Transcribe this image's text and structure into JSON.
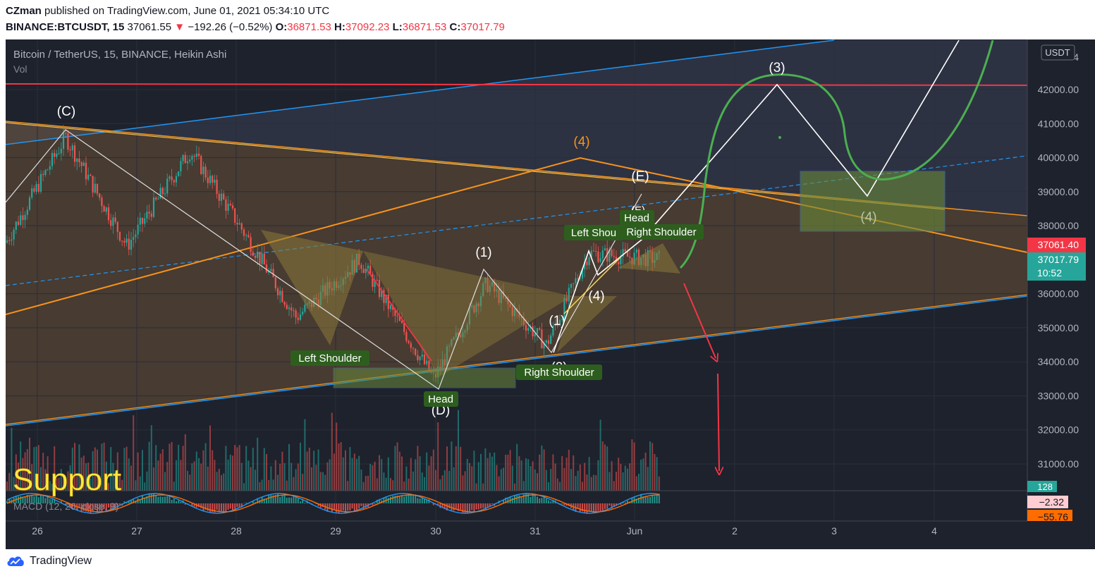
{
  "header": {
    "publisher": "CZman",
    "published_text": "published on TradingView.com, June 01, 2021 05:34:10 UTC",
    "symbol": "BINANCE:BTCUSDT, 15",
    "last": "37061.55",
    "change_arrow": "▼",
    "change": "−192.26 (−0.52%)",
    "open_label": "O:",
    "open": "36871.53",
    "high_label": "H:",
    "high": "37092.23",
    "low_label": "L:",
    "low": "36871.53",
    "close_label": "C:",
    "close": "37017.79"
  },
  "legend": {
    "title": "Bitcoin / TetherUS, 15, BINANCE, Heikin Ashi",
    "vol": "Vol",
    "macd": "MACD (12, 26, close, 9)"
  },
  "currency_badge": "USDT",
  "price_badges": {
    "red_price": "37061.40",
    "teal_price": "37017.79",
    "teal_time": "10:52",
    "vol_value": "128",
    "macd_val1": "−2.32",
    "macd_val2": "−55.76"
  },
  "annotations": {
    "support": "Support",
    "wave_C": "(C)",
    "wave_D": "(D)",
    "wave_E": "(E)",
    "wave_E_partial": "(E)",
    "wave_1a": "(1)",
    "wave_1b": "(1)",
    "wave_2": "(2)",
    "wave_3": "(3)",
    "wave_4_orange": "(4)",
    "wave_4_white": "(4)",
    "wave_4_box": "(4)",
    "left_shoulder_1": "Left Shoulder",
    "head_1": "Head",
    "right_shoulder_1": "Right Shoulder",
    "left_shoulder_2": "Left Shou",
    "head_2": "Head",
    "right_shoulder_2": "Right Shoulder"
  },
  "branding": {
    "name": "TradingView"
  },
  "colors": {
    "background": "#1e222d",
    "candle_up": "#26a69a",
    "candle_down": "#ef5350",
    "orange_line": "#f7931a",
    "blue_line": "#2962ff",
    "red_line": "#f23645",
    "green_curve": "#4caf50",
    "label_green": "#2e5e1e",
    "support_text": "#ffeb3b"
  },
  "chart_data": {
    "type": "candlestick",
    "chart_style": "Heikin Ashi",
    "symbol": "BTCUSDT",
    "exchange": "BINANCE",
    "interval": "15",
    "y_axis": {
      "unit": "USDT",
      "ticks": [
        "42000.00",
        "41000.00",
        "40000.00",
        "39000.00",
        "38000.00",
        "36000.00",
        "35000.00",
        "34000.00",
        "33000.00",
        "32000.00",
        "31000.00"
      ],
      "partial_top_tick": "4"
    },
    "x_axis": {
      "ticks": [
        "26",
        "27",
        "28",
        "29",
        "30",
        "31",
        "Jun",
        "2",
        "3",
        "4"
      ]
    },
    "horizontal_lines": [
      {
        "price": 42150,
        "color": "red"
      }
    ],
    "price_path_approx": [
      {
        "x": "25.6",
        "price": 37500
      },
      {
        "x": "26.3",
        "price": 40600
      },
      {
        "x": "26.9",
        "price": 37400
      },
      {
        "x": "27.5",
        "price": 40200
      },
      {
        "x": "28.0",
        "price": 38000
      },
      {
        "x": "28.6",
        "price": 35300
      },
      {
        "x": "29.2",
        "price": 37000
      },
      {
        "x": "29.9",
        "price": 33500
      },
      {
        "x": "30.5",
        "price": 36300
      },
      {
        "x": "31.1",
        "price": 34500
      },
      {
        "x": "31.5",
        "price": 37200
      },
      {
        "x": "31.9",
        "price": 37100
      },
      {
        "x": "Jun 1.2",
        "price": 37017
      }
    ],
    "projection_points": [
      {
        "label": "(3)",
        "x": "2.4",
        "price": 42150
      },
      {
        "label": "(4)",
        "x": "3.3",
        "price": 38900
      }
    ],
    "indicators": [
      "Vol",
      "MACD (12, 26, close, 9)"
    ]
  }
}
